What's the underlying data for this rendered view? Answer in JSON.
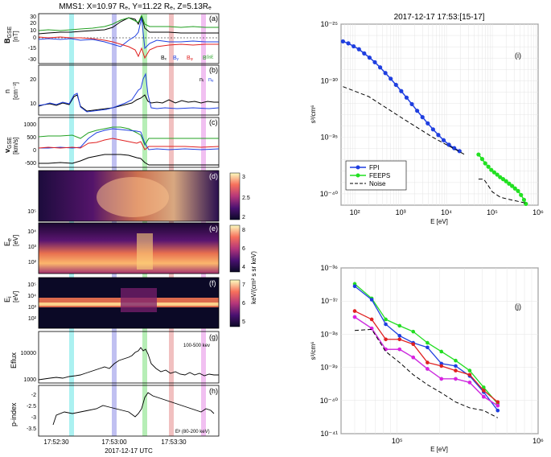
{
  "left": {
    "title": "MMS1: X=10.97 Rₑ, Y=11.22 Rₑ, Z=5.13Rₑ",
    "time_ticks": [
      "17:52:30",
      "17:53:00",
      "17:53:30"
    ],
    "date_label": "2017-12-17 UTC",
    "highlight_colors": [
      "#66e6e6",
      "#8c8ce6",
      "#7ae07a",
      "#e68c8c",
      "#e68ce6"
    ],
    "panels": {
      "a": {
        "letter": "(a)",
        "ylabel": "B",
        "ysub": "GSE",
        "yunit": "[nT]",
        "ticks": [
          "30",
          "20",
          "10",
          "0",
          "-15",
          "-30"
        ],
        "legend": [
          "Bₓ",
          "Bᵧ",
          "Bᵩ",
          "Bᴳˢᴱ"
        ]
      },
      "b": {
        "letter": "(b)",
        "ylabel": "n",
        "yunit": "[cm⁻³]",
        "ticks": [
          "20",
          "10"
        ],
        "legend": [
          "nᵢ",
          "nₑ"
        ]
      },
      "c": {
        "letter": "(c)",
        "ylabel": "v",
        "ysub": "GSE",
        "yunit": "[km/s]",
        "ticks": [
          "1000",
          "500",
          "0",
          "-500"
        ]
      },
      "d": {
        "letter": "(d)",
        "tick": "10⁵",
        "cbar_ticks": [
          "3",
          "2.5",
          "2"
        ]
      },
      "e": {
        "letter": "(e)",
        "ylabel": "E",
        "ysub": "e",
        "yunit": "[eV]",
        "ticks": [
          "10⁴",
          "10³",
          "10²"
        ],
        "cbar_ticks": [
          "8",
          "6",
          "4"
        ]
      },
      "f": {
        "letter": "(f)",
        "ylabel": "E",
        "ysub": "i",
        "yunit": "[eV]",
        "ticks": [
          "10⁵",
          "10⁴",
          "10³",
          "10²"
        ],
        "cbar_ticks": [
          "7",
          "6",
          "5"
        ]
      },
      "g": {
        "letter": "(g)",
        "ylabel": "Eflux",
        "ticks": [
          "10000",
          "1000"
        ],
        "note": "100-500 kev"
      },
      "h": {
        "letter": "(h)",
        "ylabel": "p-index",
        "ticks": [
          "-2",
          "-2.5",
          "-3",
          "-3.5"
        ],
        "note": "Eᵖ (80-200 keV)"
      }
    },
    "cbar_label": "keV/(cm² s sr keV)"
  },
  "chart_data": [
    {
      "type": "line",
      "title": "2017-12-17 17:53:[15-17]",
      "panel": "(i)",
      "xlabel": "E [eV]",
      "ylabel": "s³/cm⁶",
      "xscale": "log",
      "yscale": "log",
      "xlim": [
        50,
        1000000
      ],
      "ylim": [
        1e-41,
        1e-25
      ],
      "xticks": [
        "10²",
        "10³",
        "10⁴",
        "10⁵",
        "10⁶"
      ],
      "yticks": [
        "10⁻²⁵",
        "10⁻³⁰",
        "10⁻³⁵",
        "10⁻⁴⁰"
      ],
      "legend_position": "bottom-left",
      "series": [
        {
          "name": "FPI",
          "color": "#1f3fe0",
          "x": [
            55,
            72,
            94,
            123,
            160,
            209,
            273,
            356,
            464,
            605,
            790,
            1030,
            1345,
            1755,
            2290,
            2990,
            3900,
            5090,
            6640,
            8660,
            11300,
            14750,
            19240
          ],
          "y": [
            3e-27,
            2e-27,
            1.1e-27,
            6e-28,
            2.6e-28,
            1.1e-28,
            4.3e-29,
            1.5e-29,
            4.8e-30,
            1.5e-30,
            4.3e-31,
            1.2e-31,
            3.2e-32,
            8.5e-33,
            2.2e-33,
            6e-34,
            1.7e-34,
            5e-35,
            1.6e-35,
            5.5e-36,
            2.2e-36,
            1.1e-36,
            6e-37
          ]
        },
        {
          "name": "FEEPS",
          "color": "#22e022",
          "x": [
            50000,
            60000,
            70000,
            82000,
            95000,
            110000,
            128000,
            148000,
            172000,
            200000,
            232000,
            270000,
            313000,
            364000,
            423000,
            491000,
            540000
          ],
          "y": [
            3e-37,
            1.2e-37,
            5e-38,
            2.5e-38,
            1.3e-38,
            8e-39,
            5e-39,
            3e-39,
            2e-39,
            1.3e-39,
            8e-40,
            5e-40,
            3e-40,
            1.8e-40,
            8e-41,
            3e-41,
            1.3e-41
          ]
        },
        {
          "name": "Noise",
          "color": "#000000",
          "dash": true,
          "x": [
            55,
            200,
            1000,
            5000,
            25000
          ],
          "y": [
            3e-31,
            4e-32,
            6e-34,
            1e-35,
            3e-37
          ]
        },
        {
          "name": "",
          "color": "#000000",
          "dash": true,
          "x": [
            50000,
            65000,
            80000,
            100000,
            150000,
            250000,
            400000,
            540000
          ],
          "y": [
            2e-39,
            2e-39,
            6e-40,
            1.5e-40,
            5e-41,
            3e-41,
            2e-41,
            1.5e-41
          ]
        }
      ]
    },
    {
      "type": "line",
      "panel": "(j)",
      "xlabel": "E [eV]",
      "ylabel": "s³/cm⁶",
      "xscale": "log",
      "yscale": "log",
      "xlim": [
        40000,
        1000000
      ],
      "ylim": [
        1e-41,
        1e-36
      ],
      "xticks": [
        "10⁵",
        "10⁶"
      ],
      "yticks": [
        "10⁻³⁶",
        "10⁻³⁷",
        "10⁻³⁸",
        "10⁻³⁹",
        "10⁻⁴⁰",
        "10⁻⁴¹"
      ],
      "x": [
        50000,
        66000,
        83000,
        104000,
        130000,
        164000,
        206000,
        260000,
        327000,
        411000,
        517000
      ],
      "series": [
        {
          "color": "#22dd22",
          "values": [
            3.3e-37,
            1.2e-37,
            2.8e-38,
            1.8e-38,
            1.2e-38,
            5.5e-39,
            3e-39,
            1.6e-39,
            8e-40,
            2.5e-40,
            8e-41
          ]
        },
        {
          "color": "#1f3fe0",
          "values": [
            2.8e-37,
            1.1e-37,
            2e-38,
            9e-39,
            5.5e-39,
            4e-39,
            1.3e-39,
            1.1e-39,
            5.5e-40,
            1.8e-40,
            5e-41
          ]
        },
        {
          "color": "#e02020",
          "values": [
            5e-38,
            2.8e-38,
            7e-39,
            7e-39,
            5e-39,
            1.4e-39,
            1.1e-39,
            8e-40,
            6e-40,
            2e-40,
            9e-41
          ]
        },
        {
          "color": "#22cccc",
          "values": [
            3.3e-38,
            1.5e-38,
            3.5e-39,
            3.5e-39,
            2e-39,
            9e-40,
            4.5e-40,
            4.5e-40,
            3.5e-40,
            1.3e-40,
            7e-41
          ]
        },
        {
          "color": "#e020e0",
          "values": [
            3.3e-38,
            1.5e-38,
            3.5e-39,
            3.5e-39,
            2e-39,
            9e-40,
            4.5e-40,
            4.5e-40,
            3.5e-40,
            1.3e-40,
            7e-41
          ]
        },
        {
          "color": "#000000",
          "dash": true,
          "values": [
            1.3e-38,
            1.4e-38,
            3e-39,
            1.4e-39,
            6e-40,
            3e-40,
            1.7e-40,
            9e-41,
            6e-41,
            5e-41,
            3e-41
          ]
        }
      ]
    }
  ]
}
